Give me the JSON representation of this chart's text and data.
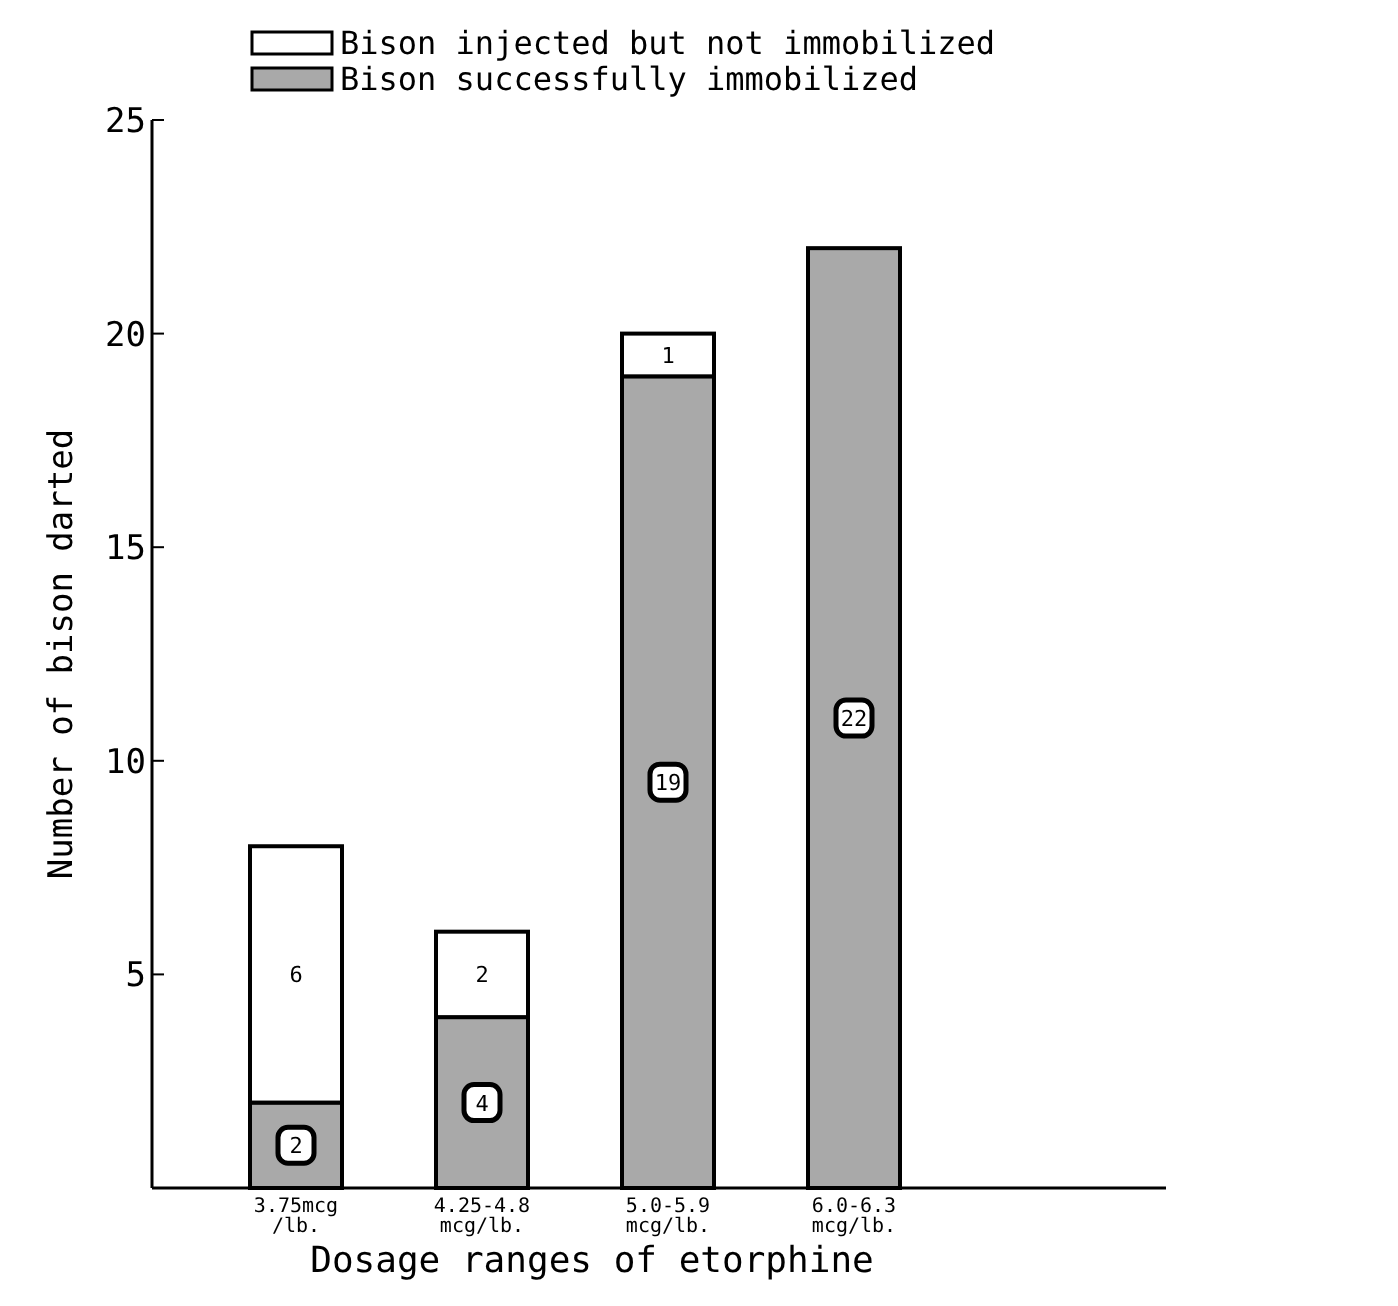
{
  "chart_data": {
    "type": "bar",
    "stacked": true,
    "xlabel": "Dosage ranges of etorphine",
    "ylabel": "Number of bison darted",
    "categories": [
      "3.75mcg\n/lb.",
      "4.25-4.8\nmcg/lb.",
      "5.0-5.9\nmcg/lb.",
      "6.0-6.3\nmcg/lb."
    ],
    "series": [
      {
        "name": "Bison successfully immobilized",
        "color": "#a9a9a9",
        "values": [
          2,
          4,
          19,
          22
        ]
      },
      {
        "name": "Bison injected but not immobilized",
        "color": "#ffffff",
        "values": [
          6,
          2,
          1,
          null
        ]
      }
    ],
    "ylim": [
      0,
      25
    ],
    "yticks": [
      5,
      10,
      15,
      20,
      25
    ],
    "data_labels": true,
    "legend": "top right"
  }
}
